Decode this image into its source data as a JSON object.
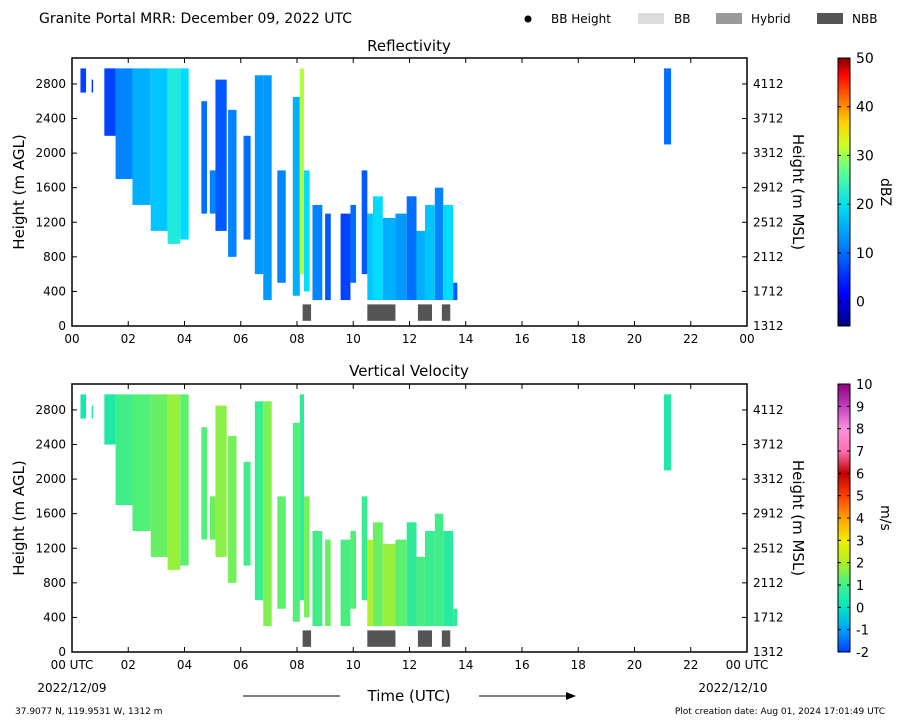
{
  "header": {
    "title": "Granite Portal MRR:  December 09, 2022 UTC",
    "legend": [
      {
        "label": "BB Height",
        "kind": "dot",
        "color": "#000000"
      },
      {
        "label": "BB",
        "kind": "box",
        "color": "#dcdcdc"
      },
      {
        "label": "Hybrid",
        "kind": "box",
        "color": "#999999"
      },
      {
        "label": "NBB",
        "kind": "box",
        "color": "#555555"
      }
    ]
  },
  "footer": {
    "xlabel": "Time (UTC)",
    "start_date": "2022/12/09",
    "end_date": "2022/12/10",
    "location": "37.9077 N, 119.9531 W, 1312 m",
    "creation": "Plot creation date: Aug 01, 2024 17:01:49 UTC"
  },
  "chart_data": [
    {
      "type": "heatmap",
      "title": "Reflectivity",
      "ylabel_left": "Height (m AGL)",
      "ylabel_right": "Height (m MSL)",
      "x_ticks": [
        "00",
        "02",
        "04",
        "06",
        "08",
        "10",
        "12",
        "14",
        "16",
        "18",
        "20",
        "22",
        "00"
      ],
      "xlim": [
        0,
        24
      ],
      "ylim": [
        0,
        3100
      ],
      "y_ticks_left": [
        0,
        400,
        800,
        1200,
        1600,
        2000,
        2400,
        2800
      ],
      "y_ticks_right": [
        1312,
        1712,
        2112,
        2512,
        2912,
        3312,
        3712,
        4112
      ],
      "colorbar": {
        "label": "dBZ",
        "min": -5,
        "max": 50,
        "ticks": [
          0,
          10,
          20,
          30,
          40,
          50
        ]
      },
      "columns": [
        {
          "x0": 0.3,
          "x1": 0.5,
          "bottom": 2700,
          "top": 2980,
          "value": 3
        },
        {
          "x0": 0.7,
          "x1": 0.75,
          "bottom": 2700,
          "top": 2850,
          "value": 2
        },
        {
          "x0": 1.15,
          "x1": 1.55,
          "bottom": 2200,
          "top": 2980,
          "value": 3
        },
        {
          "x0": 1.55,
          "x1": 2.15,
          "bottom": 1700,
          "top": 2980,
          "value": 6
        },
        {
          "x0": 2.15,
          "x1": 2.8,
          "bottom": 1400,
          "top": 2980,
          "value": 8
        },
        {
          "x0": 2.8,
          "x1": 3.4,
          "bottom": 1100,
          "top": 2980,
          "value": 9
        },
        {
          "x0": 3.4,
          "x1": 3.85,
          "bottom": 950,
          "top": 2980,
          "value": 12
        },
        {
          "x0": 3.85,
          "x1": 4.15,
          "bottom": 1000,
          "top": 2980,
          "value": 10
        },
        {
          "x0": 4.6,
          "x1": 4.8,
          "bottom": 1300,
          "top": 2600,
          "value": 5
        },
        {
          "x0": 4.9,
          "x1": 5.1,
          "bottom": 1300,
          "top": 1800,
          "value": 6
        },
        {
          "x0": 5.1,
          "x1": 5.5,
          "bottom": 1100,
          "top": 2850,
          "value": 4
        },
        {
          "x0": 5.55,
          "x1": 5.85,
          "bottom": 800,
          "top": 2500,
          "value": 6
        },
        {
          "x0": 6.1,
          "x1": 6.35,
          "bottom": 1000,
          "top": 2200,
          "value": 5
        },
        {
          "x0": 6.5,
          "x1": 6.8,
          "bottom": 600,
          "top": 2900,
          "value": 7
        },
        {
          "x0": 6.8,
          "x1": 7.1,
          "bottom": 300,
          "top": 2900,
          "value": 7
        },
        {
          "x0": 7.3,
          "x1": 7.6,
          "bottom": 500,
          "top": 1800,
          "value": 6
        },
        {
          "x0": 7.85,
          "x1": 8.1,
          "bottom": 350,
          "top": 2650,
          "value": 8
        },
        {
          "x0": 8.1,
          "x1": 8.25,
          "bottom": 600,
          "top": 2980,
          "value": 20
        },
        {
          "x0": 8.25,
          "x1": 8.45,
          "bottom": 400,
          "top": 1800,
          "value": 10
        },
        {
          "x0": 8.55,
          "x1": 8.9,
          "bottom": 300,
          "top": 1400,
          "value": 6
        },
        {
          "x0": 9.0,
          "x1": 9.2,
          "bottom": 300,
          "top": 1300,
          "value": 4
        },
        {
          "x0": 9.55,
          "x1": 9.9,
          "bottom": 300,
          "top": 1300,
          "value": 3
        },
        {
          "x0": 9.9,
          "x1": 10.1,
          "bottom": 500,
          "top": 1400,
          "value": 5
        },
        {
          "x0": 10.3,
          "x1": 10.5,
          "bottom": 600,
          "top": 1800,
          "value": 4
        },
        {
          "x0": 10.5,
          "x1": 10.7,
          "bottom": 300,
          "top": 1300,
          "value": 9
        },
        {
          "x0": 10.7,
          "x1": 11.05,
          "bottom": 300,
          "top": 1500,
          "value": 10
        },
        {
          "x0": 11.05,
          "x1": 11.5,
          "bottom": 300,
          "top": 1250,
          "value": 8
        },
        {
          "x0": 11.5,
          "x1": 11.9,
          "bottom": 300,
          "top": 1300,
          "value": 7
        },
        {
          "x0": 11.9,
          "x1": 12.25,
          "bottom": 300,
          "top": 1500,
          "value": 5
        },
        {
          "x0": 12.25,
          "x1": 12.55,
          "bottom": 300,
          "top": 1100,
          "value": 8
        },
        {
          "x0": 12.55,
          "x1": 12.9,
          "bottom": 300,
          "top": 1400,
          "value": 9
        },
        {
          "x0": 12.9,
          "x1": 13.2,
          "bottom": 300,
          "top": 1600,
          "value": 6
        },
        {
          "x0": 13.2,
          "x1": 13.55,
          "bottom": 300,
          "top": 1400,
          "value": 10
        },
        {
          "x0": 13.55,
          "x1": 13.7,
          "bottom": 300,
          "top": 500,
          "value": 4
        },
        {
          "x0": 21.05,
          "x1": 21.3,
          "bottom": 2100,
          "top": 2980,
          "value": 5
        }
      ],
      "bb_bars": [
        {
          "x0": 8.2,
          "x1": 8.5,
          "kind": "NBB"
        },
        {
          "x0": 10.5,
          "x1": 11.5,
          "kind": "NBB"
        },
        {
          "x0": 12.3,
          "x1": 12.8,
          "kind": "NBB"
        },
        {
          "x0": 13.15,
          "x1": 13.45,
          "kind": "NBB"
        }
      ]
    },
    {
      "type": "heatmap",
      "title": "Vertical Velocity",
      "ylabel_left": "Height (m AGL)",
      "ylabel_right": "Height (m MSL)",
      "x_ticks": [
        "00 UTC",
        "02",
        "04",
        "06",
        "08",
        "10",
        "12",
        "14",
        "16",
        "18",
        "20",
        "22",
        "00 UTC"
      ],
      "xlim": [
        0,
        24
      ],
      "ylim": [
        0,
        3100
      ],
      "y_ticks_left": [
        0,
        400,
        800,
        1200,
        1600,
        2000,
        2400,
        2800
      ],
      "y_ticks_right": [
        1312,
        1712,
        2112,
        2512,
        2912,
        3312,
        3712,
        4112
      ],
      "colorbar": {
        "label": "m/s",
        "min": -2,
        "max": 10,
        "ticks": [
          -2,
          -1,
          0,
          1,
          2,
          3,
          4,
          5,
          6,
          7,
          8,
          9,
          10
        ]
      },
      "columns": [
        {
          "x0": 0.3,
          "x1": 0.5,
          "bottom": 2700,
          "top": 2980,
          "value": 0.3
        },
        {
          "x0": 0.7,
          "x1": 0.75,
          "bottom": 2700,
          "top": 2850,
          "value": 0.3
        },
        {
          "x0": 1.15,
          "x1": 1.55,
          "bottom": 2400,
          "top": 2980,
          "value": 0.4
        },
        {
          "x0": 1.55,
          "x1": 2.15,
          "bottom": 1700,
          "top": 2980,
          "value": 0.8
        },
        {
          "x0": 2.15,
          "x1": 2.8,
          "bottom": 1400,
          "top": 2980,
          "value": 1.0
        },
        {
          "x0": 2.8,
          "x1": 3.4,
          "bottom": 1100,
          "top": 2980,
          "value": 1.2
        },
        {
          "x0": 3.4,
          "x1": 3.85,
          "bottom": 950,
          "top": 2980,
          "value": 1.6
        },
        {
          "x0": 3.85,
          "x1": 4.15,
          "bottom": 1000,
          "top": 2980,
          "value": 1.1
        },
        {
          "x0": 4.6,
          "x1": 4.8,
          "bottom": 1300,
          "top": 2600,
          "value": 1.0
        },
        {
          "x0": 4.9,
          "x1": 5.1,
          "bottom": 1300,
          "top": 1800,
          "value": 1.2
        },
        {
          "x0": 5.1,
          "x1": 5.5,
          "bottom": 1100,
          "top": 2850,
          "value": 1.5
        },
        {
          "x0": 5.55,
          "x1": 5.85,
          "bottom": 800,
          "top": 2500,
          "value": 1.3
        },
        {
          "x0": 6.1,
          "x1": 6.35,
          "bottom": 1000,
          "top": 2200,
          "value": 0.8
        },
        {
          "x0": 6.5,
          "x1": 6.8,
          "bottom": 600,
          "top": 2900,
          "value": 0.7
        },
        {
          "x0": 6.8,
          "x1": 7.1,
          "bottom": 300,
          "top": 2900,
          "value": 1.4
        },
        {
          "x0": 7.3,
          "x1": 7.6,
          "bottom": 500,
          "top": 1800,
          "value": 1.1
        },
        {
          "x0": 7.85,
          "x1": 8.1,
          "bottom": 350,
          "top": 2650,
          "value": 1.0
        },
        {
          "x0": 8.1,
          "x1": 8.25,
          "bottom": 600,
          "top": 2980,
          "value": 0.6
        },
        {
          "x0": 8.25,
          "x1": 8.45,
          "bottom": 400,
          "top": 1800,
          "value": 1.3
        },
        {
          "x0": 8.55,
          "x1": 8.9,
          "bottom": 300,
          "top": 1400,
          "value": 0.8
        },
        {
          "x0": 9.0,
          "x1": 9.2,
          "bottom": 300,
          "top": 1300,
          "value": 1.2
        },
        {
          "x0": 9.55,
          "x1": 9.9,
          "bottom": 300,
          "top": 1300,
          "value": 0.9
        },
        {
          "x0": 9.9,
          "x1": 10.1,
          "bottom": 500,
          "top": 1400,
          "value": 1.0
        },
        {
          "x0": 10.3,
          "x1": 10.5,
          "bottom": 600,
          "top": 1800,
          "value": 0.7
        },
        {
          "x0": 10.5,
          "x1": 10.7,
          "bottom": 300,
          "top": 1300,
          "value": 1.8
        },
        {
          "x0": 10.7,
          "x1": 11.05,
          "bottom": 300,
          "top": 1500,
          "value": 1.2
        },
        {
          "x0": 11.05,
          "x1": 11.5,
          "bottom": 300,
          "top": 1250,
          "value": 1.6
        },
        {
          "x0": 11.5,
          "x1": 11.9,
          "bottom": 300,
          "top": 1300,
          "value": 1.1
        },
        {
          "x0": 11.9,
          "x1": 12.25,
          "bottom": 300,
          "top": 1500,
          "value": 0.6
        },
        {
          "x0": 12.25,
          "x1": 12.55,
          "bottom": 300,
          "top": 1100,
          "value": 0.9
        },
        {
          "x0": 12.55,
          "x1": 12.9,
          "bottom": 300,
          "top": 1400,
          "value": 0.7
        },
        {
          "x0": 12.9,
          "x1": 13.2,
          "bottom": 300,
          "top": 1600,
          "value": 0.8
        },
        {
          "x0": 13.2,
          "x1": 13.55,
          "bottom": 300,
          "top": 1400,
          "value": 0.5
        },
        {
          "x0": 13.55,
          "x1": 13.7,
          "bottom": 300,
          "top": 500,
          "value": 0.6
        },
        {
          "x0": 21.05,
          "x1": 21.3,
          "bottom": 2100,
          "top": 2980,
          "value": 0.4
        }
      ],
      "bb_bars": [
        {
          "x0": 8.2,
          "x1": 8.5,
          "kind": "NBB"
        },
        {
          "x0": 10.5,
          "x1": 11.5,
          "kind": "NBB"
        },
        {
          "x0": 12.3,
          "x1": 12.8,
          "kind": "NBB"
        },
        {
          "x0": 13.15,
          "x1": 13.45,
          "kind": "NBB"
        }
      ]
    }
  ]
}
